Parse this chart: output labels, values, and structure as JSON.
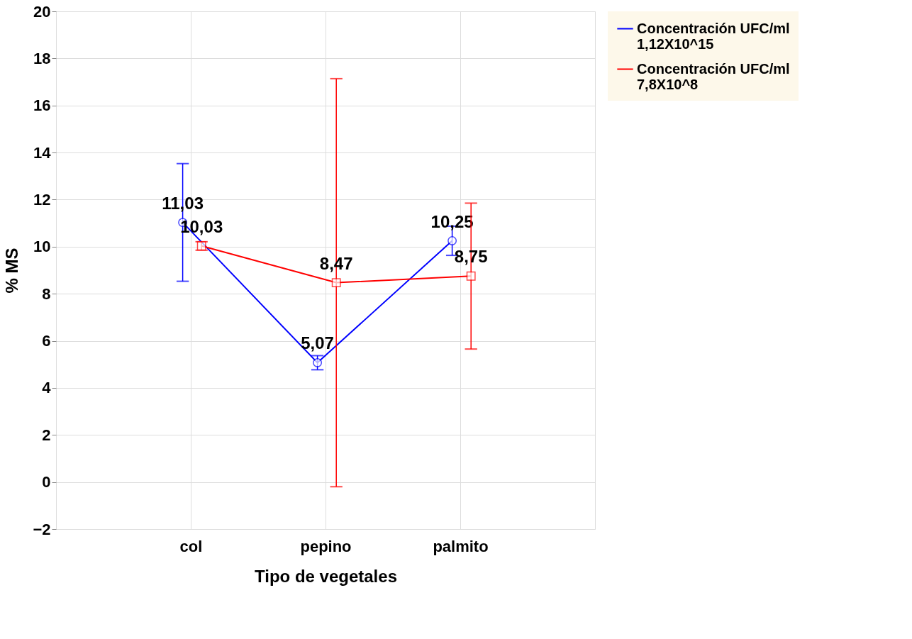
{
  "chart_data": {
    "type": "line",
    "xlabel": "Tipo de vegetales",
    "ylabel": "% MS",
    "categories": [
      "col",
      "pepino",
      "palmito"
    ],
    "ylim": [
      -2,
      20
    ],
    "yticks": [
      -2,
      0,
      2,
      4,
      6,
      8,
      10,
      12,
      14,
      16,
      18,
      20
    ],
    "grid": true,
    "legend": "right",
    "series": [
      {
        "name": "Concentración UFC/ml\n1,12X10^15",
        "color": "#0000ff",
        "marker": "circle",
        "values": [
          11.03,
          5.07,
          10.25
        ],
        "errors": [
          2.5,
          0.3,
          0.62
        ],
        "value_labels": [
          "11,03",
          "5,07",
          "10,25"
        ]
      },
      {
        "name": "Concentración UFC/ml\n7,8X10^8",
        "color": "#ff0000",
        "marker": "square",
        "values": [
          10.03,
          8.47,
          8.75
        ],
        "errors": [
          0.18,
          8.67,
          3.1
        ],
        "value_labels": [
          "10,03",
          "8,47",
          "8,75"
        ]
      }
    ]
  }
}
